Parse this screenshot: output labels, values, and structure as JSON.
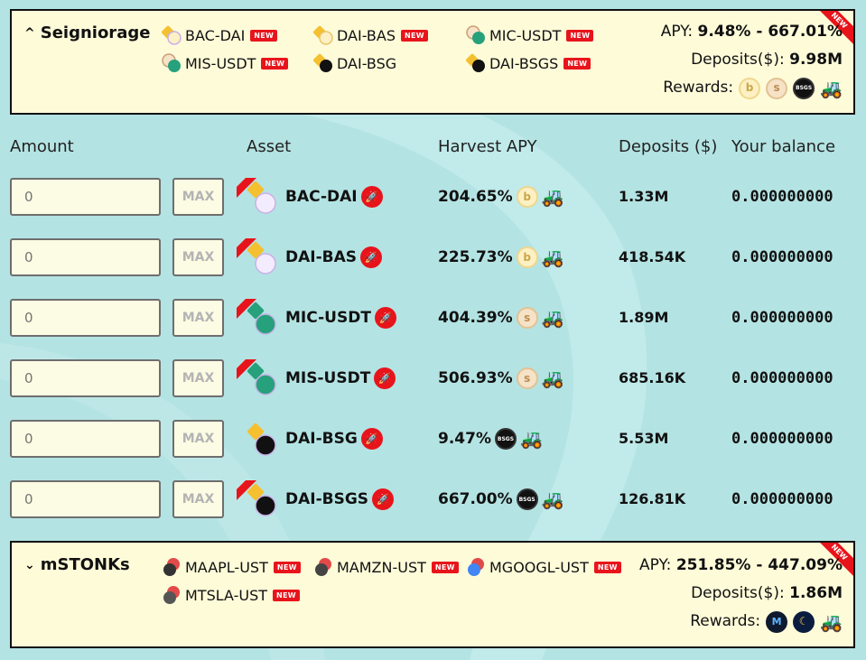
{
  "colors": {
    "accent_red": "#e8141b",
    "card_bg": "#fefbd9",
    "page_bg": "#b4e3e3"
  },
  "top_pool": {
    "title": "Seigniorage",
    "pairs": [
      {
        "label": "BAC-DAI",
        "badge": "NEW",
        "icon": "bac-dai-pair-icon"
      },
      {
        "label": "DAI-BAS",
        "badge": "NEW",
        "icon": "dai-bas-pair-icon"
      },
      {
        "label": "MIC-USDT",
        "badge": "NEW",
        "icon": "mic-usdt-pair-icon"
      },
      {
        "label": "MIS-USDT",
        "badge": "NEW",
        "icon": "mis-usdt-pair-icon"
      },
      {
        "label": "DAI-BSG",
        "badge": "",
        "icon": "dai-bsg-pair-icon"
      },
      {
        "label": "DAI-BSGS",
        "badge": "NEW",
        "icon": "dai-bsgs-pair-icon"
      }
    ],
    "apy_label": "APY:",
    "apy_value": "9.48% - 667.01%",
    "deposits_label": "Deposits($):",
    "deposits_value": "9.98M",
    "rewards_label": "Rewards:",
    "ribbon": "NEW"
  },
  "table": {
    "headers": {
      "amount": "Amount",
      "asset": "Asset",
      "apy": "Harvest APY",
      "deposits": "Deposits ($)",
      "balance": "Your balance"
    },
    "max_label": "MAX",
    "rows": [
      {
        "amount": "0",
        "asset": "BAC-DAI",
        "apy": "204.65%",
        "deposits": "1.33M",
        "balance": "0.000000000",
        "reward": "bac"
      },
      {
        "amount": "0",
        "asset": "DAI-BAS",
        "apy": "225.73%",
        "deposits": "418.54K",
        "balance": "0.000000000",
        "reward": "bac"
      },
      {
        "amount": "0",
        "asset": "MIC-USDT",
        "apy": "404.39%",
        "deposits": "1.89M",
        "balance": "0.000000000",
        "reward": "bas"
      },
      {
        "amount": "0",
        "asset": "MIS-USDT",
        "apy": "506.93%",
        "deposits": "685.16K",
        "balance": "0.000000000",
        "reward": "bas"
      },
      {
        "amount": "0",
        "asset": "DAI-BSG",
        "apy": "9.47%",
        "deposits": "5.53M",
        "balance": "0.000000000",
        "reward": "bsgs"
      },
      {
        "amount": "0",
        "asset": "DAI-BSGS",
        "apy": "667.00%",
        "deposits": "126.81K",
        "balance": "0.000000000",
        "reward": "bsgs"
      }
    ]
  },
  "bottom_pool": {
    "title": "mSTONKs",
    "pairs": [
      {
        "label": "MAAPL-UST",
        "badge": "NEW"
      },
      {
        "label": "MAMZN-UST",
        "badge": "NEW"
      },
      {
        "label": "MGOOGL-UST",
        "badge": "NEW"
      },
      {
        "label": "MTSLA-UST",
        "badge": "NEW"
      }
    ],
    "apy_label": "APY:",
    "apy_value": "251.85% - 447.09%",
    "deposits_label": "Deposits($):",
    "deposits_value": "1.86M",
    "rewards_label": "Rewards:",
    "ribbon": "NEW"
  },
  "coin_glyphs": {
    "bac": "b",
    "bas": "s",
    "bsgs": "BSGS",
    "mir": "M",
    "ust": "☾",
    "tractor": "🚜",
    "rocket": "🚀"
  }
}
